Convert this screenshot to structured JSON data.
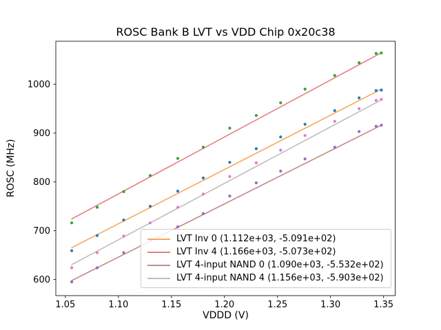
{
  "figure": {
    "background_color": "#ffffff",
    "spine_color": "#2b2b2b"
  },
  "chart_data": {
    "type": "scatter",
    "title": "ROSC Bank B LVT vs VDD Chip 0x20c38",
    "xlabel": "VDDD (V)",
    "ylabel": "ROSC (MHz)",
    "xlim": [
      1.041,
      1.361
    ],
    "ylim": [
      567,
      1088
    ],
    "xticks": [
      1.05,
      1.1,
      1.15,
      1.2,
      1.25,
      1.3,
      1.35
    ],
    "yticks": [
      600,
      700,
      800,
      900,
      1000
    ],
    "grid": false,
    "legend_position": "lower right",
    "x": [
      1.056,
      1.08,
      1.105,
      1.13,
      1.156,
      1.18,
      1.205,
      1.23,
      1.253,
      1.276,
      1.304,
      1.327,
      1.343,
      1.348
    ],
    "fit_line_x_range": [
      1.056,
      1.348
    ],
    "series": [
      {
        "name": "LVT Inv 0",
        "legend": "LVT Inv 0 (1.112e+03, -5.091e+02)",
        "fit": {
          "slope": 1112.0,
          "intercept": -509.1
        },
        "line_color": "#f9a65b",
        "marker_color": "#1f77b4",
        "values": [
          659,
          690,
          722,
          750,
          781,
          808,
          840,
          868,
          892,
          918,
          946,
          972,
          987,
          988
        ]
      },
      {
        "name": "LVT Inv 4",
        "legend": "LVT Inv 4 (1.166e+03, -5.073e+02)",
        "fit": {
          "slope": 1166.0,
          "intercept": -507.3
        },
        "line_color": "#e57d80",
        "marker_color": "#2ca02c",
        "values": [
          716,
          748,
          780,
          813,
          848,
          871,
          910,
          936,
          962,
          990,
          1018,
          1044,
          1063,
          1064
        ]
      },
      {
        "name": "LVT 4-input NAND 0",
        "legend": "LVT 4-input NAND 0 (1.090e+03, -5.532e+02)",
        "fit": {
          "slope": 1090.0,
          "intercept": -553.2
        },
        "line_color": "#bd8e87",
        "marker_color": "#9467bd",
        "values": [
          595,
          624,
          655,
          679,
          708,
          735,
          771,
          798,
          822,
          847,
          871,
          903,
          914,
          916
        ]
      },
      {
        "name": "LVT 4-input NAND 4",
        "legend": "LVT 4-input NAND 4 (1.156e+03, -5.903e+02)",
        "fit": {
          "slope": 1156.0,
          "intercept": -590.3
        },
        "line_color": "#bdbdbd",
        "marker_color": "#e377c2",
        "values": [
          624,
          655,
          689,
          716,
          748,
          775,
          811,
          839,
          865,
          895,
          924,
          950,
          967,
          969
        ]
      }
    ]
  }
}
